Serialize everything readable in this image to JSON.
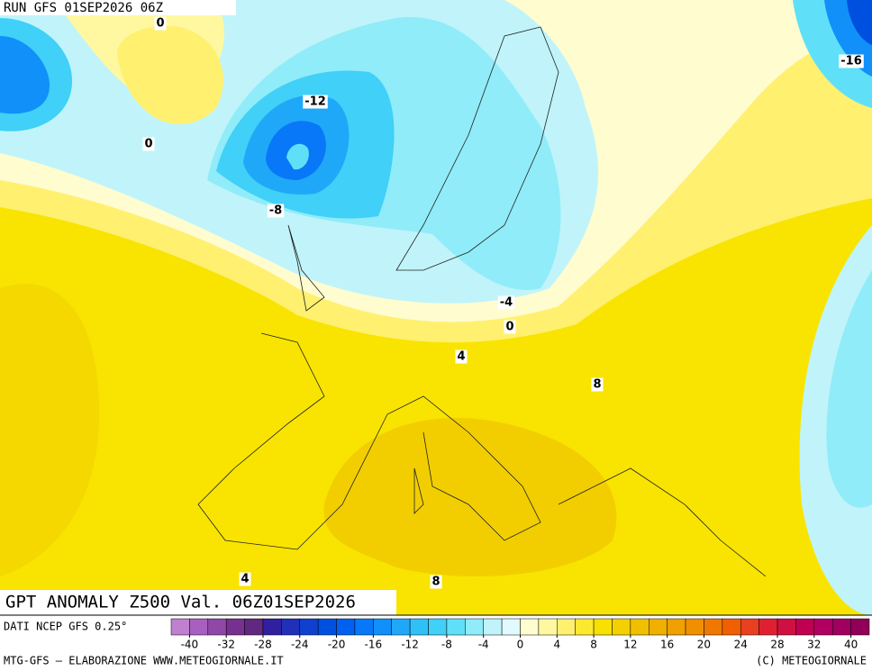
{
  "header": {
    "run": "RUN GFS 01SEP2026 06Z"
  },
  "map": {
    "title": "GPT ANOMALY Z500 Val. 06Z01SEP2026",
    "contour_labels": [
      0,
      0,
      -12,
      -8,
      -16,
      -4,
      0,
      4,
      8,
      4,
      8
    ]
  },
  "footer": {
    "source": "DATI NCEP GFS 0.25°",
    "credit": "MTG-GFS — ELABORAZIONE WWW.METEOGIORNALE.IT",
    "copyright": "(C) METEOGIORNALE"
  },
  "colorbar": {
    "ticks": [
      -40,
      -32,
      -28,
      -24,
      -20,
      -16,
      -12,
      -8,
      -4,
      0,
      4,
      8,
      12,
      16,
      20,
      24,
      28,
      32,
      40
    ],
    "colors": [
      "#c080d0",
      "#a860c0",
      "#9048a8",
      "#783090",
      "#602880",
      "#3020a0",
      "#2030b8",
      "#1040d0",
      "#0050e0",
      "#0060f0",
      "#0878f8",
      "#1090f8",
      "#20a8f8",
      "#30c0f8",
      "#40d0f8",
      "#60e0f8",
      "#90ecf8",
      "#c0f4fa",
      "#e0faff",
      "#fffcd0",
      "#fff8a0",
      "#fff070",
      "#fde830",
      "#f8e000",
      "#f4d000",
      "#f0c000",
      "#f0b000",
      "#f0a000",
      "#f09000",
      "#f07800",
      "#f06000",
      "#e84020",
      "#e02030",
      "#d01040",
      "#c00050",
      "#b00060",
      "#a00060",
      "#900058"
    ]
  }
}
